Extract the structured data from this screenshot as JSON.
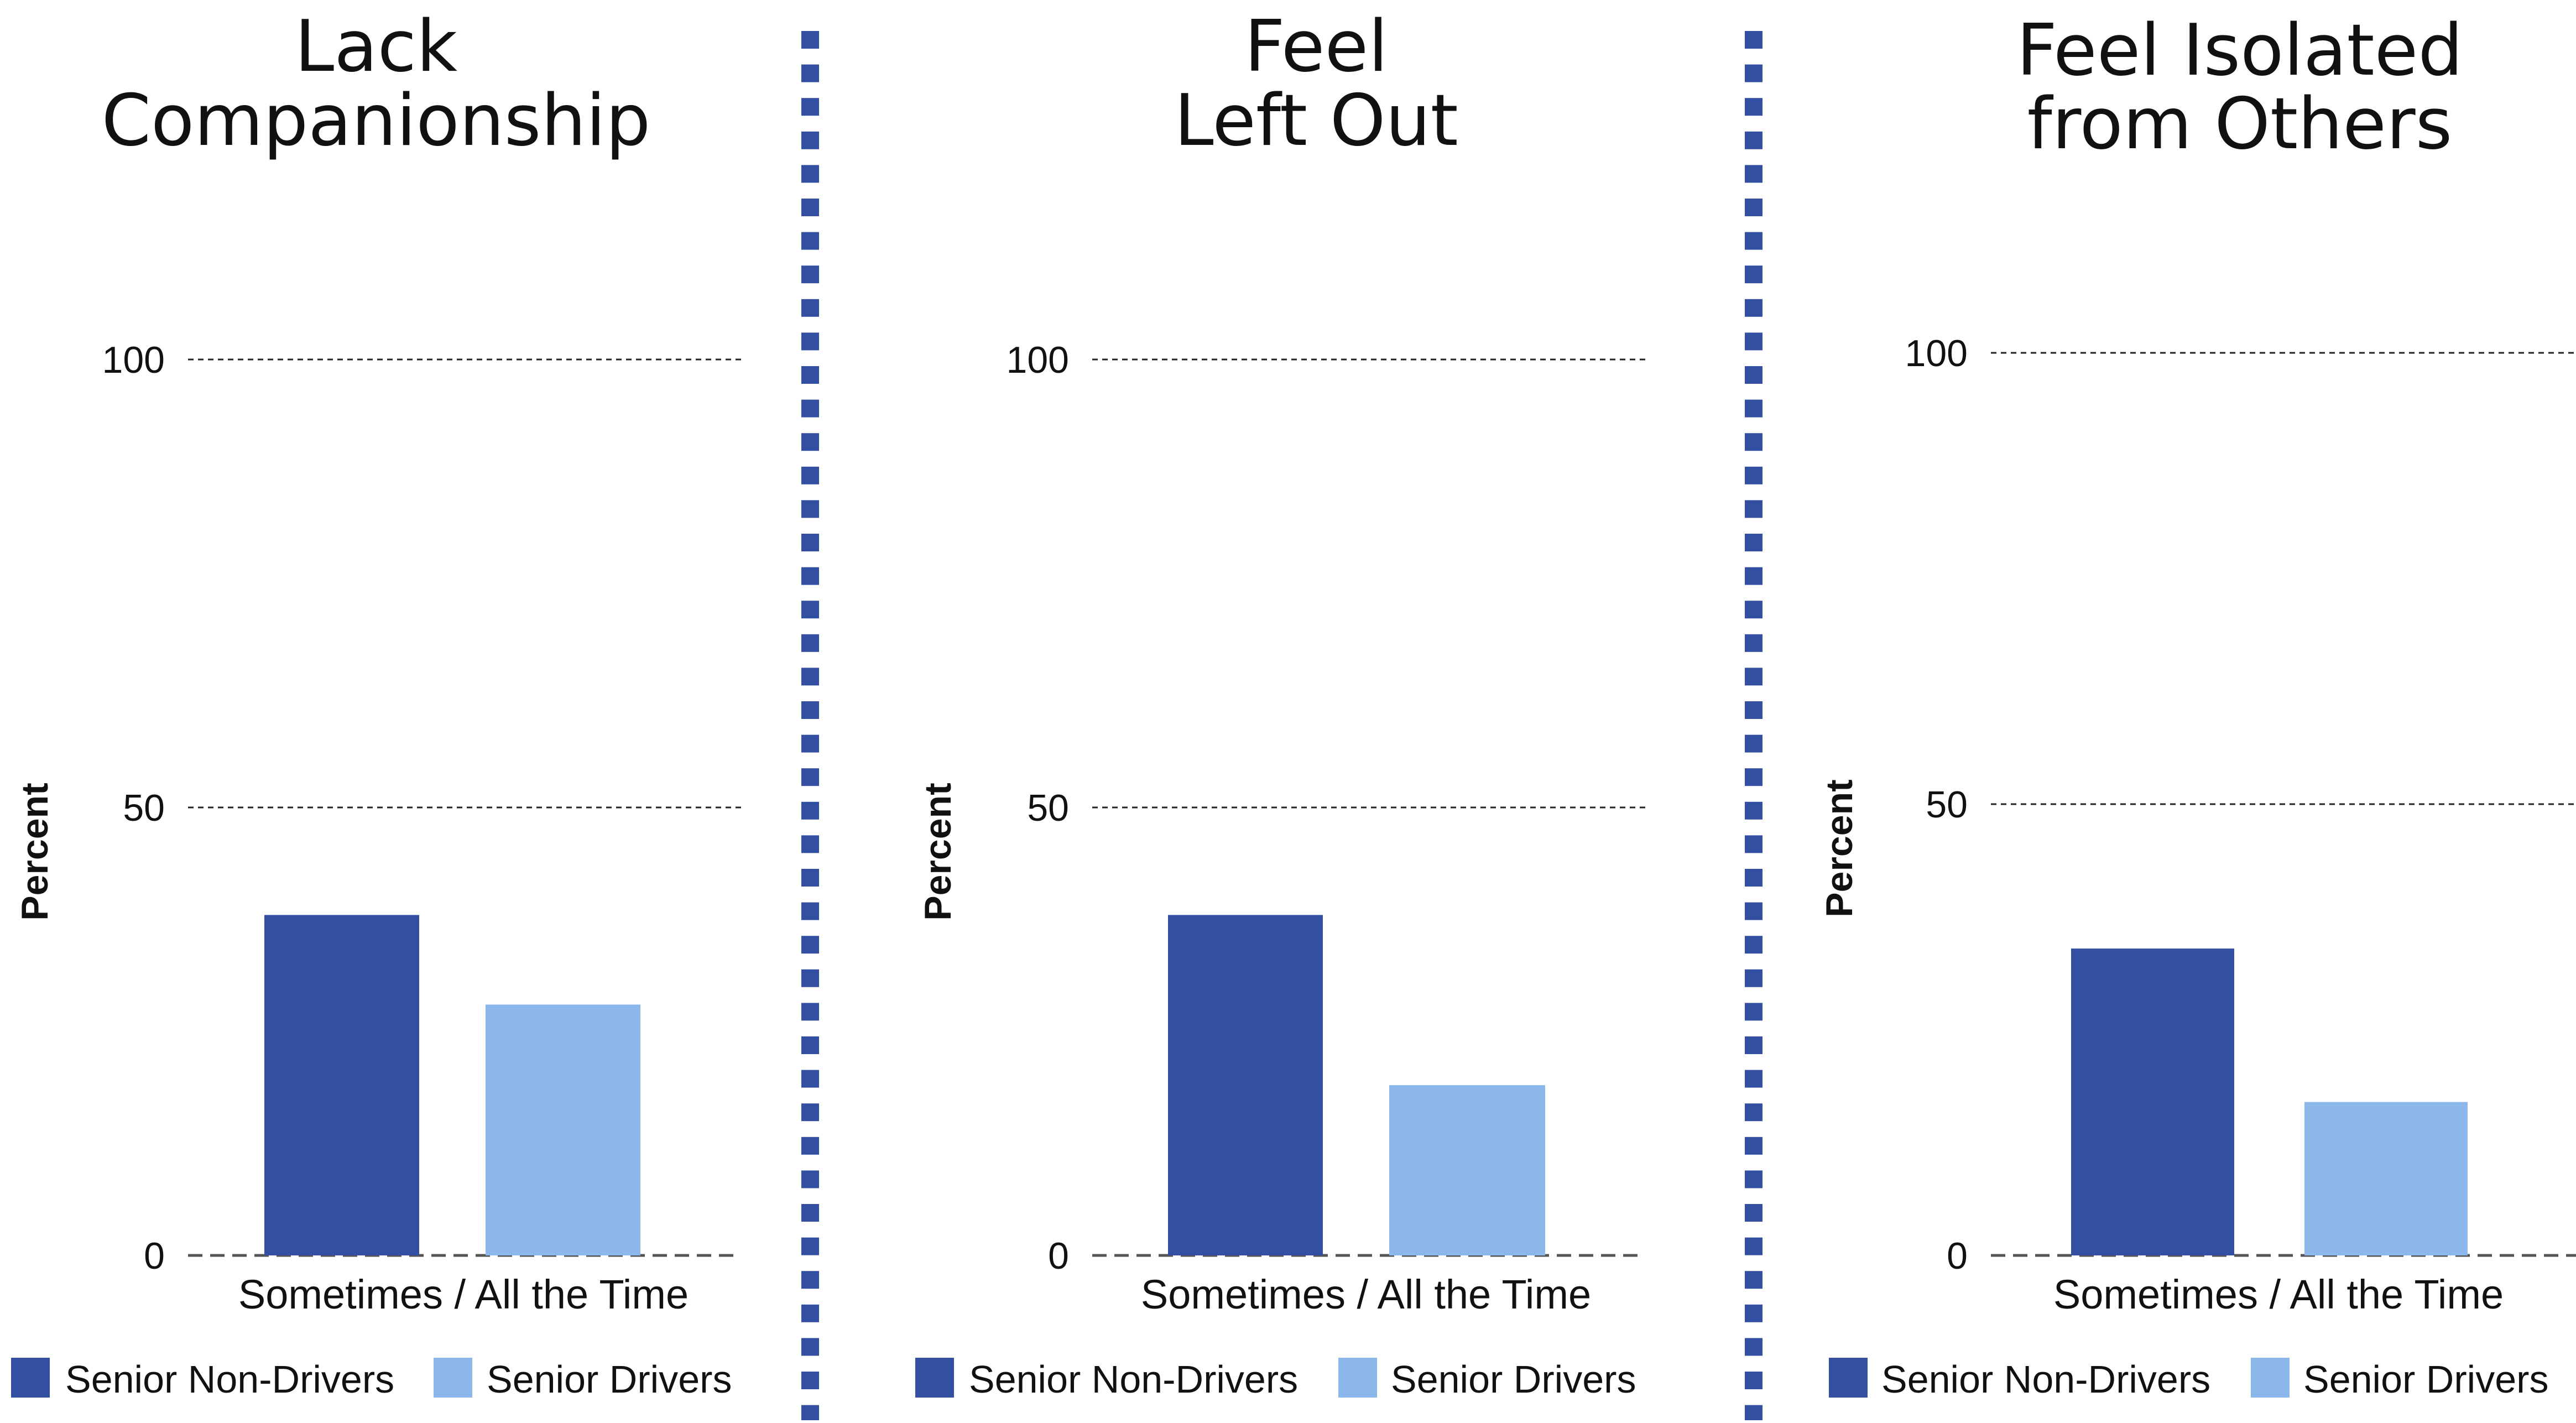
{
  "chart_data": [
    {
      "type": "bar",
      "title_lines": [
        "Lack",
        "Companionship"
      ],
      "ylabel": "Percent",
      "categories": [
        "Sometimes / All the Time"
      ],
      "yticks": [
        "0",
        "50",
        "100"
      ],
      "ylim": [
        0,
        100
      ],
      "grid": true,
      "legend": "bottom",
      "series": [
        {
          "name": "Senior Non-Drivers",
          "values": [
            38
          ],
          "color": "#334fa1"
        },
        {
          "name": "Senior Drivers",
          "values": [
            28
          ],
          "color": "#8bb7ea"
        }
      ]
    },
    {
      "type": "bar",
      "title_lines": [
        "Feel",
        "Left Out"
      ],
      "ylabel": "Percent",
      "categories": [
        "Sometimes / All the Time"
      ],
      "yticks": [
        "0",
        "50",
        "100"
      ],
      "ylim": [
        0,
        100
      ],
      "grid": true,
      "legend": "bottom",
      "series": [
        {
          "name": "Senior Non-Drivers",
          "values": [
            38
          ],
          "color": "#334fa1"
        },
        {
          "name": "Senior Drivers",
          "values": [
            19
          ],
          "color": "#8bb7ea"
        }
      ]
    },
    {
      "type": "bar",
      "title_lines": [
        "Feel Isolated",
        "from Others"
      ],
      "ylabel": "Percent",
      "categories": [
        "Sometimes / All the Time"
      ],
      "yticks": [
        "0",
        "50",
        "100"
      ],
      "ylim": [
        0,
        100
      ],
      "grid": true,
      "legend": "bottom",
      "series": [
        {
          "name": "Senior Non-Drivers",
          "values": [
            34
          ],
          "color": "#334fa1"
        },
        {
          "name": "Senior Drivers",
          "values": [
            17
          ],
          "color": "#8bb7ea"
        }
      ]
    }
  ],
  "divider_color": "#334fa1"
}
